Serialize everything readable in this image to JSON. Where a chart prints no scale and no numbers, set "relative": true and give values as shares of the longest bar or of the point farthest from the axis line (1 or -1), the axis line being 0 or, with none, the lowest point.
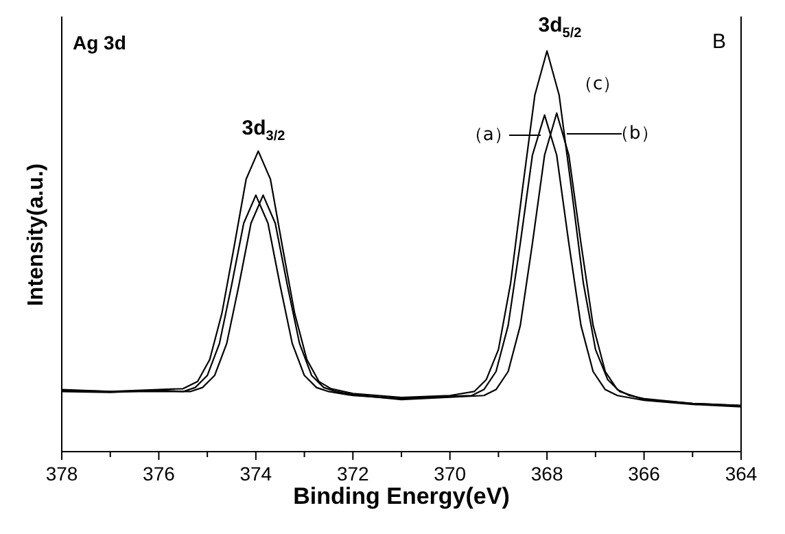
{
  "chart_data": {
    "type": "line",
    "relative": true,
    "xlabel": "Binding Energy(eV)",
    "ylabel": "Intensity(a.u.)",
    "xlim": [
      378,
      364
    ],
    "xticks": [
      378,
      {
        "value": 377,
        "label": null
      },
      376,
      {
        "value": 375,
        "label": null
      },
      374,
      {
        "value": 373,
        "label": null
      },
      372,
      {
        "value": 371,
        "label": null
      },
      370,
      {
        "value": 369,
        "label": null
      },
      368,
      {
        "value": 367,
        "label": null
      },
      366,
      {
        "value": 365,
        "label": null
      },
      364
    ],
    "annotations": [
      "Ag 3d",
      "B",
      "3d$_{3/2}$",
      "3d$_{5/2}$"
    ],
    "series": [
      {
        "name": "（a）",
        "color": "#000000",
        "x": [
          378,
          377,
          376,
          375.5,
          375.25,
          375,
          374.75,
          374.5,
          374.25,
          374,
          373.75,
          373.5,
          373.25,
          373,
          372.75,
          372.5,
          372,
          371,
          370,
          369.55,
          369.3,
          369.05,
          368.8,
          368.55,
          368.3,
          368.05,
          367.8,
          367.55,
          367.3,
          367.05,
          366.8,
          366.55,
          366,
          365,
          364
        ],
        "values": [
          0.15,
          0.148,
          0.153,
          0.15,
          0.16,
          0.19,
          0.27,
          0.415,
          0.57,
          0.64,
          0.57,
          0.415,
          0.27,
          0.19,
          0.16,
          0.15,
          0.14,
          0.132,
          0.138,
          0.14,
          0.155,
          0.2,
          0.315,
          0.52,
          0.74,
          0.84,
          0.74,
          0.52,
          0.315,
          0.2,
          0.155,
          0.14,
          0.128,
          0.118,
          0.112
        ]
      },
      {
        "name": "（b）",
        "color": "#000000",
        "x": [
          378,
          377,
          376,
          375.35,
          375.1,
          374.85,
          374.6,
          374.35,
          374.1,
          373.85,
          373.6,
          373.35,
          373.1,
          372.85,
          372.6,
          372.35,
          372,
          371,
          370,
          369.3,
          369.05,
          368.8,
          368.55,
          368.3,
          368.05,
          367.8,
          367.55,
          367.3,
          367.05,
          366.8,
          366.55,
          366.3,
          366,
          365,
          364
        ],
        "values": [
          0.153,
          0.15,
          0.15,
          0.15,
          0.16,
          0.19,
          0.27,
          0.415,
          0.57,
          0.64,
          0.57,
          0.415,
          0.27,
          0.19,
          0.16,
          0.15,
          0.142,
          0.13,
          0.136,
          0.14,
          0.155,
          0.2,
          0.315,
          0.52,
          0.74,
          0.845,
          0.74,
          0.52,
          0.315,
          0.2,
          0.155,
          0.14,
          0.132,
          0.12,
          0.115
        ]
      },
      {
        "name": "（c）",
        "color": "#000000",
        "x": [
          378,
          377,
          376,
          375.5,
          375.2,
          374.95,
          374.7,
          374.45,
          374.2,
          373.95,
          373.7,
          373.45,
          373.2,
          372.95,
          372.7,
          372.45,
          372,
          371,
          370,
          369.5,
          369.25,
          369,
          368.75,
          368.5,
          368.25,
          368,
          367.75,
          367.5,
          367.25,
          367,
          366.75,
          366.5,
          366,
          365,
          364
        ],
        "values": [
          0.155,
          0.15,
          0.155,
          0.157,
          0.175,
          0.23,
          0.345,
          0.51,
          0.68,
          0.75,
          0.68,
          0.51,
          0.345,
          0.23,
          0.175,
          0.157,
          0.145,
          0.135,
          0.14,
          0.15,
          0.18,
          0.255,
          0.42,
          0.66,
          0.89,
          1.0,
          0.89,
          0.66,
          0.42,
          0.255,
          0.18,
          0.15,
          0.13,
          0.12,
          0.115
        ]
      }
    ]
  }
}
